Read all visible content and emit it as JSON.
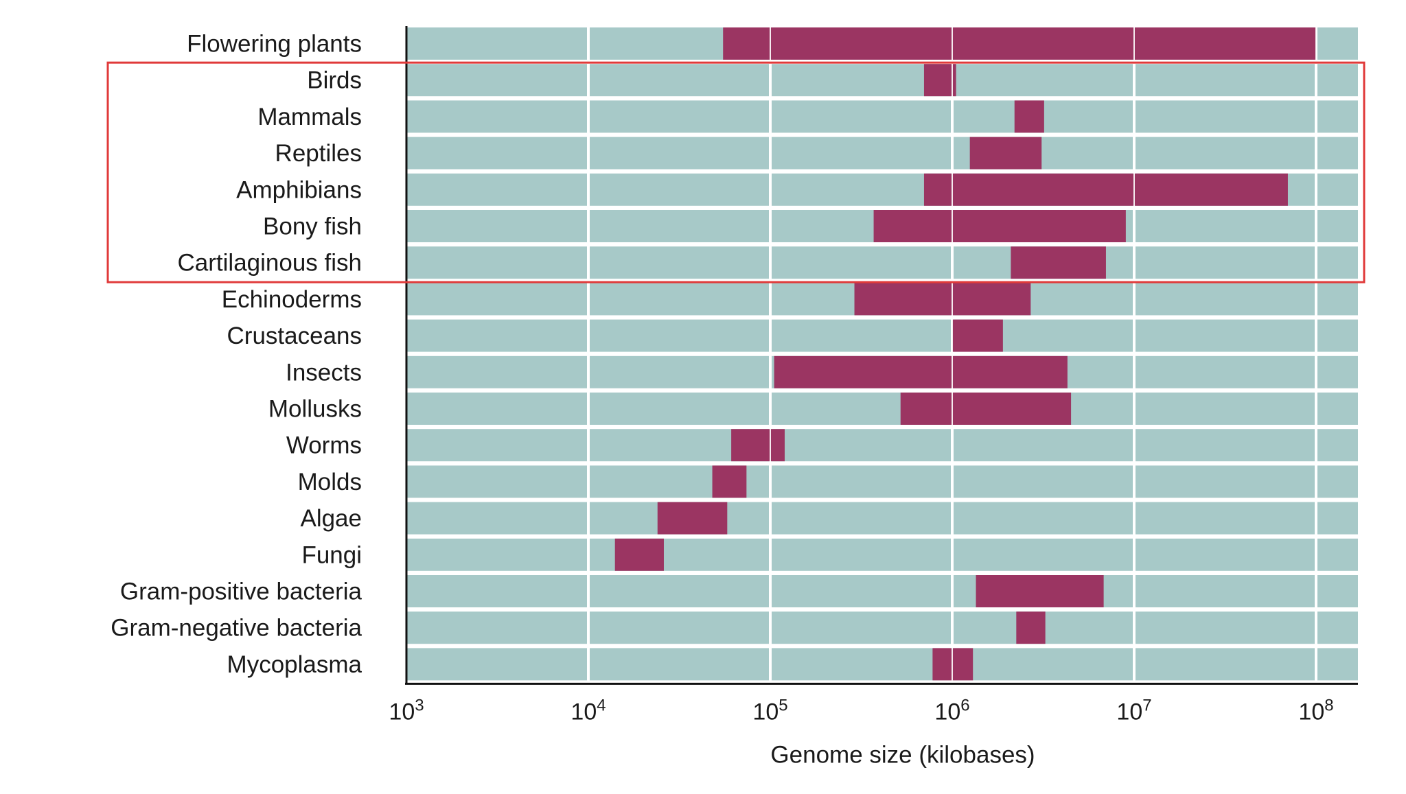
{
  "chart_data": {
    "type": "bar",
    "subtype": "floating-range",
    "title": "",
    "xlabel": "Genome size (kilobases)",
    "ylabel": "",
    "xscale": "log",
    "xlim": [
      1000,
      130000000
    ],
    "x_ticks": [
      {
        "value": 1000,
        "base": "10",
        "exp": "3"
      },
      {
        "value": 10000,
        "base": "10",
        "exp": "4"
      },
      {
        "value": 100000,
        "base": "10",
        "exp": "5"
      },
      {
        "value": 1000000,
        "base": "10",
        "exp": "6"
      },
      {
        "value": 10000000,
        "base": "10",
        "exp": "7"
      },
      {
        "value": 100000000,
        "base": "10",
        "exp": "8"
      }
    ],
    "grid": true,
    "categories": [
      "Flowering plants",
      "Birds",
      "Mammals",
      "Reptiles",
      "Amphibians",
      "Bony fish",
      "Cartilaginous fish",
      "Echinoderms",
      "Crustaceans",
      "Insects",
      "Mollusks",
      "Worms",
      "Molds",
      "Algae",
      "Fungi",
      "Gram-positive bacteria",
      "Gram-negative bacteria",
      "Mycoplasma"
    ],
    "ranges": [
      [
        55000,
        100000000
      ],
      [
        700000,
        1050000
      ],
      [
        2200000,
        3200000
      ],
      [
        1250000,
        3100000
      ],
      [
        700000,
        70000000
      ],
      [
        370000,
        9000000
      ],
      [
        2100000,
        7000000
      ],
      [
        290000,
        2700000
      ],
      [
        1000000,
        1900000
      ],
      [
        105000,
        4300000
      ],
      [
        520000,
        4500000
      ],
      [
        61000,
        120000
      ],
      [
        48000,
        74000
      ],
      [
        24000,
        58000
      ],
      [
        14000,
        26000
      ],
      [
        1350000,
        6800000
      ],
      [
        2250000,
        3250000
      ],
      [
        780000,
        1300000
      ]
    ],
    "range_units": [
      "kb",
      "kb",
      "kb",
      "kb",
      "kb",
      "kb",
      "kb",
      "kb",
      "kb",
      "kb",
      "kb",
      "kb",
      "kb",
      "kb",
      "kb",
      "kb",
      "kb",
      "kb"
    ],
    "highlight_box": {
      "from": "Birds",
      "to": "Cartilaginous fish"
    },
    "colors": {
      "bar": "#9b3562",
      "band": "#a7c9c8",
      "grid": "#ffffff",
      "highlight": "#e03a3a",
      "axis": "#111111",
      "text": "#1a1a1a"
    }
  }
}
